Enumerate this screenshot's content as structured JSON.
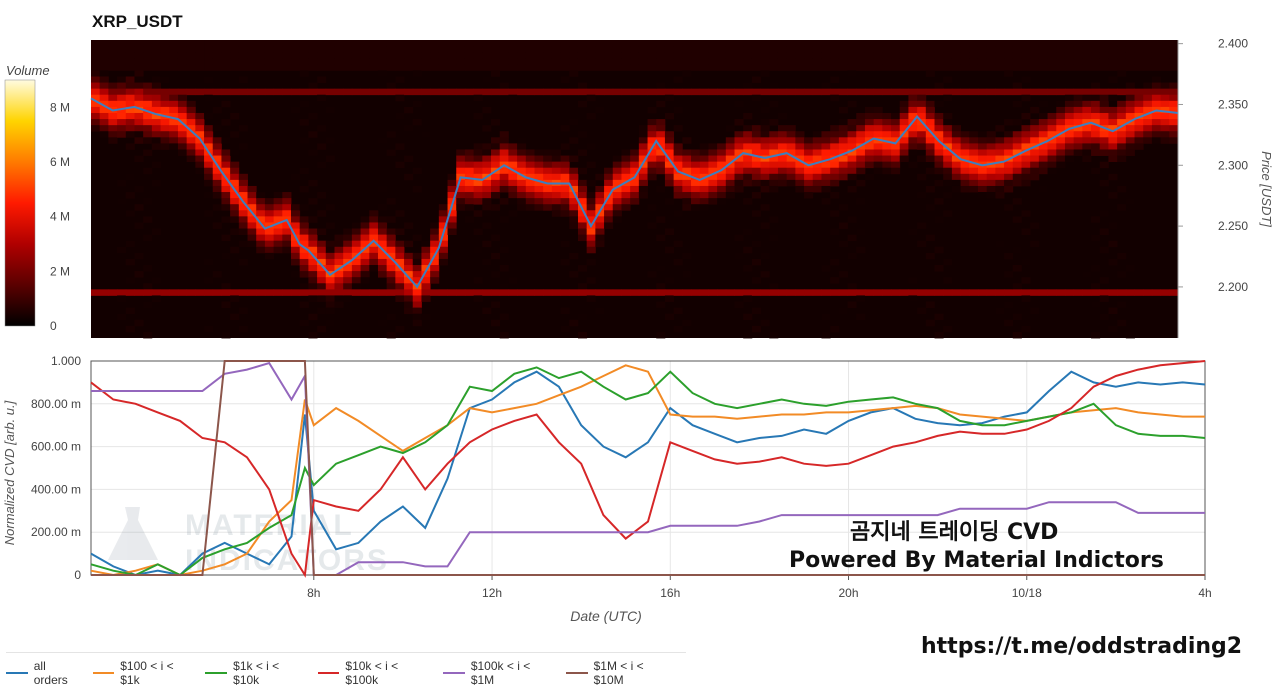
{
  "title": "XRP_USDT",
  "overlay": {
    "line1": "곰지네 트레이딩 CVD",
    "line2": "Powered By Material Indictors",
    "url": "https://t.me/oddstrading2",
    "watermark_line1": "MATERIAL",
    "watermark_line2": "INDICATORS"
  },
  "chart_data": [
    {
      "type": "heatmap",
      "title": "XRP_USDT",
      "ylabel": "Price [USDT]",
      "ylim": [
        2.158,
        2.403
      ],
      "yticks": [
        "2.200",
        "2.250",
        "2.300",
        "2.350",
        "2.400"
      ],
      "colorbar": {
        "label": "Volume",
        "ticks": [
          "0",
          "2 M",
          "4 M",
          "6 M",
          "8 M"
        ],
        "range": [
          0,
          9000000
        ]
      },
      "colorscale": [
        "#000000",
        "#5a0000",
        "#b00000",
        "#ff1a00",
        "#ff7a00",
        "#ffd400",
        "#fffbe0"
      ],
      "price_series": {
        "color": "#3d7fc0",
        "x_hours": [
          3.0,
          3.5,
          4.0,
          4.5,
          5.0,
          5.5,
          6.0,
          6.5,
          7.0,
          7.5,
          7.8,
          8.0,
          8.5,
          9.0,
          9.5,
          10.0,
          10.5,
          11.0,
          11.5,
          12.0,
          12.5,
          13.0,
          13.5,
          14.0,
          14.5,
          15.0,
          15.5,
          16.0,
          16.5,
          17.0,
          17.5,
          18.0,
          18.5,
          19.0,
          19.5,
          20.0,
          20.5,
          21.0,
          21.5,
          22.0,
          22.5,
          23.0,
          23.5,
          24.0,
          24.5,
          25.0,
          25.5,
          26.0,
          26.5,
          27.0,
          27.5,
          28.0
        ],
        "prices": [
          2.355,
          2.345,
          2.348,
          2.342,
          2.338,
          2.322,
          2.295,
          2.27,
          2.248,
          2.255,
          2.235,
          2.23,
          2.21,
          2.222,
          2.238,
          2.22,
          2.2,
          2.232,
          2.29,
          2.288,
          2.3,
          2.29,
          2.285,
          2.285,
          2.25,
          2.28,
          2.29,
          2.32,
          2.295,
          2.288,
          2.296,
          2.31,
          2.306,
          2.31,
          2.3,
          2.305,
          2.312,
          2.322,
          2.318,
          2.34,
          2.32,
          2.305,
          2.3,
          2.303,
          2.312,
          2.32,
          2.33,
          2.335,
          2.328,
          2.338,
          2.345,
          2.343
        ]
      }
    },
    {
      "type": "line",
      "xlabel": "Date (UTC)",
      "ylabel": "Normalized CVD [arb. u.]",
      "ylim": [
        0,
        1
      ],
      "xlim_hours": [
        3.0,
        28.0
      ],
      "xtick_hours": [
        8,
        12,
        16,
        20,
        24,
        28
      ],
      "xtick_labels": [
        "8h",
        "12h",
        "16h",
        "20h",
        "10/18",
        "4h"
      ],
      "ytick_values": [
        0,
        0.2,
        0.4,
        0.6,
        0.8,
        1.0
      ],
      "ytick_labels": [
        "0",
        "200.00 m",
        "400.00 m",
        "600.00 m",
        "800.00 m",
        "1.000"
      ],
      "x_hours": [
        3.0,
        3.5,
        4.0,
        4.5,
        5.0,
        5.5,
        6.0,
        6.5,
        7.0,
        7.5,
        7.8,
        8.0,
        8.5,
        9.0,
        9.5,
        10.0,
        10.5,
        11.0,
        11.5,
        12.0,
        12.5,
        13.0,
        13.5,
        14.0,
        14.5,
        15.0,
        15.5,
        16.0,
        16.5,
        17.0,
        17.5,
        18.0,
        18.5,
        19.0,
        19.5,
        20.0,
        20.5,
        21.0,
        21.5,
        22.0,
        22.5,
        23.0,
        23.5,
        24.0,
        24.5,
        25.0,
        25.5,
        26.0,
        26.5,
        27.0,
        27.5,
        28.0
      ],
      "series": [
        {
          "name": "all orders",
          "color": "#2878b5",
          "values": [
            0.1,
            0.04,
            0.0,
            0.02,
            0.0,
            0.1,
            0.15,
            0.1,
            0.05,
            0.18,
            0.75,
            0.3,
            0.12,
            0.15,
            0.25,
            0.32,
            0.22,
            0.45,
            0.78,
            0.82,
            0.9,
            0.95,
            0.88,
            0.7,
            0.6,
            0.55,
            0.62,
            0.78,
            0.7,
            0.66,
            0.62,
            0.64,
            0.65,
            0.68,
            0.66,
            0.72,
            0.76,
            0.78,
            0.73,
            0.71,
            0.7,
            0.71,
            0.74,
            0.76,
            0.86,
            0.95,
            0.9,
            0.88,
            0.9,
            0.89,
            0.9,
            0.89
          ]
        },
        {
          "name": "$100 < i < $1k",
          "color": "#f28b26",
          "values": [
            0.02,
            0.0,
            0.02,
            0.05,
            0.0,
            0.02,
            0.05,
            0.1,
            0.25,
            0.35,
            0.82,
            0.7,
            0.78,
            0.72,
            0.65,
            0.58,
            0.64,
            0.7,
            0.78,
            0.76,
            0.78,
            0.8,
            0.84,
            0.88,
            0.93,
            0.98,
            0.95,
            0.75,
            0.74,
            0.74,
            0.73,
            0.74,
            0.75,
            0.75,
            0.76,
            0.76,
            0.77,
            0.78,
            0.79,
            0.78,
            0.75,
            0.74,
            0.73,
            0.72,
            0.74,
            0.76,
            0.77,
            0.78,
            0.76,
            0.75,
            0.74,
            0.74
          ]
        },
        {
          "name": "$1k < i < $10k",
          "color": "#2ca02c",
          "values": [
            0.05,
            0.02,
            0.0,
            0.05,
            0.0,
            0.08,
            0.12,
            0.15,
            0.22,
            0.28,
            0.5,
            0.42,
            0.52,
            0.56,
            0.6,
            0.57,
            0.62,
            0.7,
            0.88,
            0.86,
            0.94,
            0.97,
            0.92,
            0.95,
            0.88,
            0.82,
            0.85,
            0.95,
            0.85,
            0.8,
            0.78,
            0.8,
            0.82,
            0.8,
            0.79,
            0.81,
            0.82,
            0.83,
            0.8,
            0.78,
            0.72,
            0.7,
            0.7,
            0.72,
            0.74,
            0.76,
            0.8,
            0.7,
            0.66,
            0.65,
            0.65,
            0.64
          ]
        },
        {
          "name": "$10k < i < $100k",
          "color": "#d62728",
          "values": [
            0.9,
            0.82,
            0.8,
            0.76,
            0.72,
            0.64,
            0.62,
            0.55,
            0.4,
            0.1,
            0.0,
            0.35,
            0.32,
            0.3,
            0.4,
            0.55,
            0.4,
            0.52,
            0.62,
            0.68,
            0.72,
            0.75,
            0.62,
            0.52,
            0.28,
            0.17,
            0.25,
            0.62,
            0.58,
            0.54,
            0.52,
            0.53,
            0.55,
            0.52,
            0.51,
            0.52,
            0.56,
            0.6,
            0.62,
            0.65,
            0.67,
            0.66,
            0.66,
            0.68,
            0.72,
            0.78,
            0.88,
            0.93,
            0.96,
            0.98,
            0.99,
            1.0
          ]
        },
        {
          "name": "$100k < i < $1M",
          "color": "#9467bd",
          "values": [
            0.86,
            0.86,
            0.86,
            0.86,
            0.86,
            0.86,
            0.94,
            0.96,
            0.99,
            0.82,
            0.93,
            0.0,
            0.0,
            0.06,
            0.06,
            0.06,
            0.04,
            0.04,
            0.2,
            0.2,
            0.2,
            0.2,
            0.2,
            0.2,
            0.2,
            0.2,
            0.2,
            0.23,
            0.23,
            0.23,
            0.23,
            0.25,
            0.28,
            0.28,
            0.28,
            0.28,
            0.28,
            0.28,
            0.28,
            0.28,
            0.31,
            0.31,
            0.31,
            0.31,
            0.34,
            0.34,
            0.34,
            0.34,
            0.29,
            0.29,
            0.29,
            0.29
          ]
        },
        {
          "name": "$1M < i < $10M",
          "color": "#8c564b",
          "values": [
            0.0,
            0.0,
            0.0,
            0.0,
            0.0,
            0.0,
            1.0,
            1.0,
            1.0,
            1.0,
            1.0,
            0.0,
            0.0,
            0.0,
            0.0,
            0.0,
            0.0,
            0.0,
            0.0,
            0.0,
            0.0,
            0.0,
            0.0,
            0.0,
            0.0,
            0.0,
            0.0,
            0.0,
            0.0,
            0.0,
            0.0,
            0.0,
            0.0,
            0.0,
            0.0,
            0.0,
            0.0,
            0.0,
            0.0,
            0.0,
            0.0,
            0.0,
            0.0,
            0.0,
            0.0,
            0.0,
            0.0,
            0.0,
            0.0,
            0.0,
            0.0,
            0.0
          ]
        }
      ]
    }
  ]
}
